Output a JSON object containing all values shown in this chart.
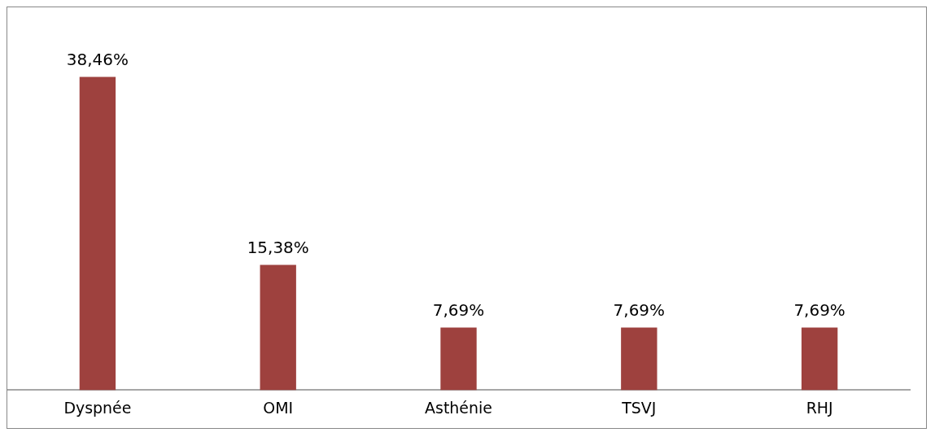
{
  "chart_data": {
    "type": "bar",
    "categories": [
      "Dyspnée",
      "OMI",
      "Asthénie",
      "TSVJ",
      "RHJ"
    ],
    "values": [
      38.46,
      15.38,
      7.69,
      7.69,
      7.69
    ],
    "value_labels": [
      "38,46%",
      "15,38%",
      "7,69%",
      "7,69%",
      "7,69%"
    ],
    "color": "#9e413e",
    "grid": false,
    "legend": false
  }
}
